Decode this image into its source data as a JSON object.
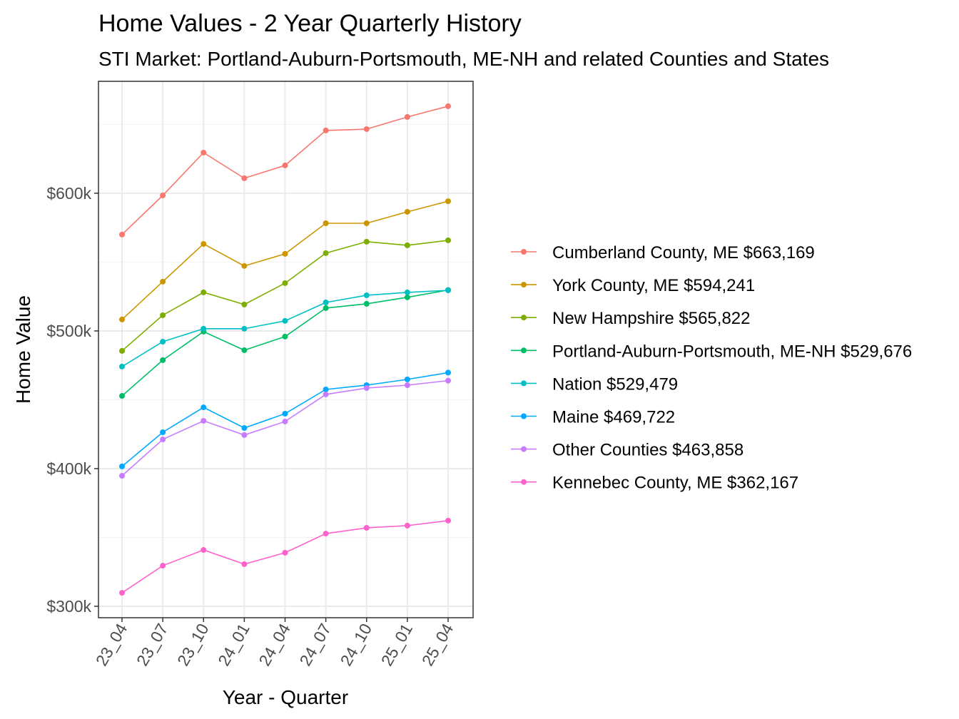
{
  "chart_data": {
    "type": "line",
    "title": "Home Values - 2 Year Quarterly History",
    "subtitle": "STI Market: Portland-Auburn-Portsmouth, ME-NH and related Counties and States",
    "xlabel": "Year - Quarter",
    "ylabel": "Home Value",
    "categories": [
      "23_04",
      "23_07",
      "23_10",
      "24_01",
      "24_04",
      "24_07",
      "24_10",
      "25_01",
      "25_04"
    ],
    "ylim": [
      291.7,
      681.3
    ],
    "y_unit": "$ thousands",
    "yticks": [
      300,
      400,
      500,
      600
    ],
    "ytick_labels": [
      "$300k",
      "$400k",
      "$500k",
      "$600k"
    ],
    "grid": true,
    "legend_position": "right",
    "series": [
      {
        "name": "Cumberland County, ME $663,169",
        "color": "#F8766D",
        "values": [
          570,
          598.4,
          629.5,
          610.9,
          620.2,
          645.6,
          646.6,
          655.4,
          663.2
        ]
      },
      {
        "name": "York County, ME $594,241",
        "color": "#CD9600",
        "values": [
          508.3,
          535.8,
          563.2,
          547.2,
          556,
          578.2,
          578.2,
          586.5,
          594.2
        ]
      },
      {
        "name": "New Hampshire $565,822",
        "color": "#7CAE00",
        "values": [
          485.5,
          511.4,
          528,
          519.2,
          534.7,
          556.5,
          564.8,
          562.2,
          565.8
        ]
      },
      {
        "name": "Portland-Auburn-Portsmouth, ME-NH $529,676",
        "color": "#00BE67",
        "values": [
          452.8,
          478.8,
          499.5,
          486,
          495.9,
          516.6,
          519.7,
          524.4,
          529.7
        ]
      },
      {
        "name": "Nation $529,479",
        "color": "#00BFC4",
        "values": [
          474.1,
          492.2,
          501.6,
          501.6,
          507.3,
          520.7,
          525.9,
          528,
          529.5
        ]
      },
      {
        "name": "Maine $469,722",
        "color": "#00A9FF",
        "values": [
          401.6,
          426.4,
          444.5,
          429.5,
          439.9,
          457.5,
          460.6,
          464.8,
          469.7
        ]
      },
      {
        "name": "Other Counties $463,858",
        "color": "#C77CFF",
        "values": [
          394.8,
          421.2,
          434.7,
          424.4,
          434.2,
          453.9,
          458.5,
          460.6,
          463.9
        ]
      },
      {
        "name": "Kennebec County, ME $362,167",
        "color": "#FF61CC",
        "values": [
          309.8,
          329.5,
          340.9,
          330.6,
          338.9,
          352.8,
          357,
          358.6,
          362.2
        ]
      }
    ]
  }
}
